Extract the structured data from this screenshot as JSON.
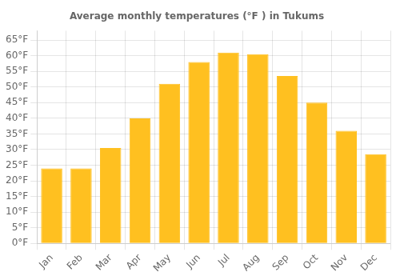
{
  "chart_data": {
    "type": "bar",
    "title": "Average monthly temperatures (°F ) in Tukums",
    "categories": [
      "Jan",
      "Feb",
      "Mar",
      "Apr",
      "May",
      "Jun",
      "Jul",
      "Aug",
      "Sep",
      "Oct",
      "Nov",
      "Dec"
    ],
    "values": [
      24,
      24,
      30.5,
      40,
      51,
      58,
      61,
      60.5,
      53.5,
      45,
      36,
      28.5
    ],
    "color": "#FFC020",
    "ylim": [
      0,
      68
    ],
    "yticks": [
      {
        "value": 0,
        "label": "0°F"
      },
      {
        "value": 5,
        "label": "5°F"
      },
      {
        "value": 10,
        "label": "10°F"
      },
      {
        "value": 15,
        "label": "15°F"
      },
      {
        "value": 20,
        "label": "20°F"
      },
      {
        "value": 25,
        "label": "25°F"
      },
      {
        "value": 30,
        "label": "30°F"
      },
      {
        "value": 35,
        "label": "35°F"
      },
      {
        "value": 40,
        "label": "40°F"
      },
      {
        "value": 45,
        "label": "45°F"
      },
      {
        "value": 50,
        "label": "50°F"
      },
      {
        "value": 55,
        "label": "55°F"
      },
      {
        "value": 60,
        "label": "60°F"
      },
      {
        "value": 65,
        "label": "65°F"
      }
    ],
    "grid": true
  }
}
